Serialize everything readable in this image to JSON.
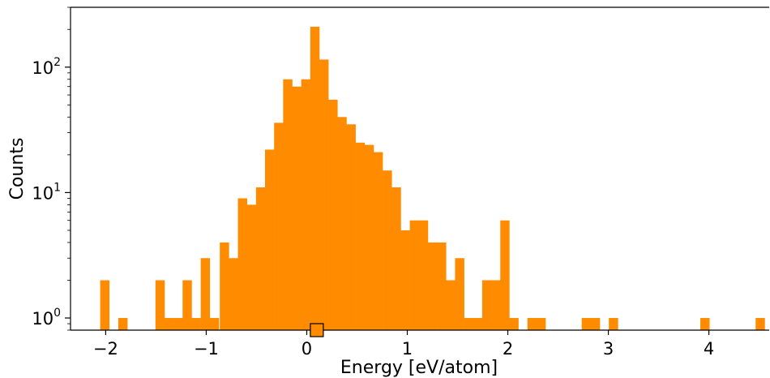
{
  "chart_data": {
    "type": "bar",
    "title": "",
    "xlabel": "Energy [eV/atom]",
    "ylabel": "Counts",
    "yscale": "log",
    "xlim": [
      -2.35,
      4.6
    ],
    "ylim": [
      0.8,
      300
    ],
    "bin_width": 0.09,
    "x_ticks": [
      {
        "value": -2,
        "label": "−2"
      },
      {
        "value": -1,
        "label": "−1"
      },
      {
        "value": 0,
        "label": "0"
      },
      {
        "value": 1,
        "label": "1"
      },
      {
        "value": 2,
        "label": "2"
      },
      {
        "value": 3,
        "label": "3"
      },
      {
        "value": 4,
        "label": "4"
      }
    ],
    "y_ticks": [
      {
        "value": 1,
        "base": "10",
        "exp": "0"
      },
      {
        "value": 10,
        "base": "10",
        "exp": "1"
      },
      {
        "value": 100,
        "base": "10",
        "exp": "2"
      }
    ],
    "bars": [
      {
        "x": -2.01,
        "y": 2
      },
      {
        "x": -1.83,
        "y": 1
      },
      {
        "x": -1.46,
        "y": 2
      },
      {
        "x": -1.37,
        "y": 1
      },
      {
        "x": -1.28,
        "y": 1
      },
      {
        "x": -1.19,
        "y": 2
      },
      {
        "x": -1.1,
        "y": 1
      },
      {
        "x": -1.01,
        "y": 3
      },
      {
        "x": -0.92,
        "y": 1
      },
      {
        "x": -0.82,
        "y": 4
      },
      {
        "x": -0.73,
        "y": 3
      },
      {
        "x": -0.64,
        "y": 9
      },
      {
        "x": -0.55,
        "y": 8
      },
      {
        "x": -0.46,
        "y": 11
      },
      {
        "x": -0.37,
        "y": 22
      },
      {
        "x": -0.28,
        "y": 36
      },
      {
        "x": -0.19,
        "y": 80
      },
      {
        "x": -0.1,
        "y": 70
      },
      {
        "x": -0.01,
        "y": 80
      },
      {
        "x": 0.08,
        "y": 210
      },
      {
        "x": 0.17,
        "y": 115
      },
      {
        "x": 0.26,
        "y": 55
      },
      {
        "x": 0.35,
        "y": 40
      },
      {
        "x": 0.44,
        "y": 35
      },
      {
        "x": 0.53,
        "y": 25
      },
      {
        "x": 0.62,
        "y": 24
      },
      {
        "x": 0.71,
        "y": 21
      },
      {
        "x": 0.8,
        "y": 15
      },
      {
        "x": 0.89,
        "y": 11
      },
      {
        "x": 0.98,
        "y": 5
      },
      {
        "x": 1.07,
        "y": 6
      },
      {
        "x": 1.16,
        "y": 6
      },
      {
        "x": 1.25,
        "y": 4
      },
      {
        "x": 1.34,
        "y": 4
      },
      {
        "x": 1.43,
        "y": 2
      },
      {
        "x": 1.52,
        "y": 3
      },
      {
        "x": 1.61,
        "y": 1
      },
      {
        "x": 1.7,
        "y": 1
      },
      {
        "x": 1.79,
        "y": 2
      },
      {
        "x": 1.88,
        "y": 2
      },
      {
        "x": 1.97,
        "y": 6
      },
      {
        "x": 2.06,
        "y": 1
      },
      {
        "x": 2.24,
        "y": 1
      },
      {
        "x": 2.33,
        "y": 1
      },
      {
        "x": 2.78,
        "y": 1
      },
      {
        "x": 2.87,
        "y": 1
      },
      {
        "x": 3.05,
        "y": 1
      },
      {
        "x": 3.96,
        "y": 1
      },
      {
        "x": 4.51,
        "y": 1
      }
    ],
    "marker": {
      "x": 0.1,
      "shape": "square",
      "color": "#ff8c00"
    },
    "bar_color": "#ff8c00"
  }
}
